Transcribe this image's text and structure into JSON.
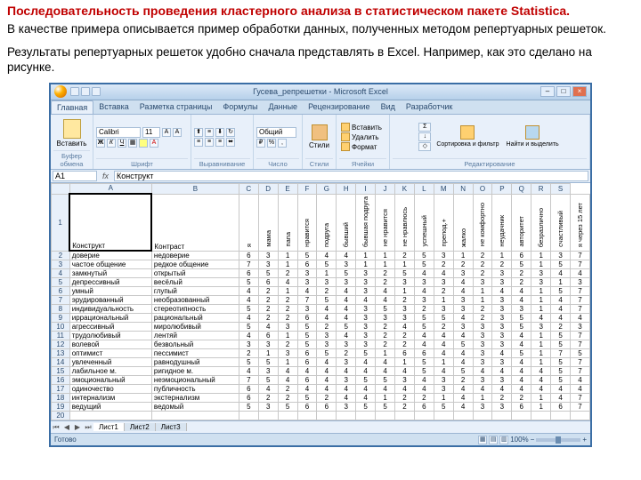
{
  "title": "Последовательность проведения кластерного анализа в статистическом пакете Statistica.",
  "para1": "В качестве примера описывается пример обработки данных, полученных методом репертуарных решеток.",
  "para2": "Результаты репертуарных решеток удобно сначала представлять в Excel. Например, как это сделано на рисунке.",
  "window_title": "Гусева_репрешетки - Microsoft Excel",
  "tabs": [
    "Главная",
    "Вставка",
    "Разметка страницы",
    "Формулы",
    "Данные",
    "Рецензирование",
    "Вид",
    "Разработчик"
  ],
  "active_tab": 0,
  "ribbon": {
    "clipboard": {
      "paste": "Вставить",
      "label": "Буфер обмена"
    },
    "font": {
      "name": "Calibri",
      "size": "11",
      "label": "Шрифт"
    },
    "align": {
      "label": "Выравнивание"
    },
    "number": {
      "format": "Общий",
      "label": "Число"
    },
    "styles": {
      "label": "Стили"
    },
    "cells": {
      "insert": "Вставить",
      "delete": "Удалить",
      "format": "Формат",
      "label": "Ячейки"
    },
    "editing": {
      "sort": "Сортировка и фильтр",
      "find": "Найти и выделить",
      "label": "Редактирование"
    }
  },
  "namebox": "A1",
  "formula": "Конструкт",
  "col_letters": [
    "",
    "A",
    "B",
    "C",
    "D",
    "E",
    "F",
    "G",
    "H",
    "I",
    "J",
    "K",
    "L",
    "M",
    "N",
    "O",
    "P",
    "Q",
    "R",
    "S"
  ],
  "header_row": [
    "Конструкт",
    "Контраст",
    "я",
    "мама",
    "папа",
    "нравится",
    "подруга",
    "бывший",
    "бывшая подруга",
    "не нравится",
    "не нравлюсь",
    "успешный",
    "препод.+",
    "жалко",
    "не комфортно",
    "неудачник",
    "авторитет",
    "безразлично",
    "счастливый",
    "я через 15 лет"
  ],
  "rows": [
    {
      "n": 2,
      "a": "доверие",
      "b": "недоверие",
      "v": [
        6,
        3,
        1,
        5,
        4,
        4,
        1,
        1,
        2,
        5,
        3,
        1,
        2,
        1,
        6,
        1,
        3,
        7
      ]
    },
    {
      "n": 3,
      "a": "частое общение",
      "b": "редкое общение",
      "v": [
        7,
        3,
        1,
        6,
        5,
        3,
        1,
        1,
        1,
        5,
        2,
        2,
        2,
        2,
        5,
        1,
        5,
        7
      ]
    },
    {
      "n": 4,
      "a": "замкнутый",
      "b": "открытый",
      "v": [
        6,
        5,
        2,
        3,
        1,
        5,
        3,
        2,
        5,
        4,
        4,
        3,
        2,
        3,
        2,
        3,
        4,
        4
      ]
    },
    {
      "n": 5,
      "a": "депрессивный",
      "b": "весёлый",
      "v": [
        5,
        6,
        4,
        3,
        3,
        3,
        3,
        2,
        3,
        3,
        3,
        4,
        3,
        3,
        2,
        3,
        1,
        3
      ]
    },
    {
      "n": 6,
      "a": "умный",
      "b": "глупый",
      "v": [
        4,
        2,
        1,
        4,
        2,
        4,
        3,
        4,
        1,
        4,
        2,
        4,
        1,
        4,
        4,
        1,
        5,
        7
      ]
    },
    {
      "n": 7,
      "a": "эрудированный",
      "b": "необразованный",
      "v": [
        4,
        2,
        2,
        7,
        5,
        4,
        4,
        4,
        2,
        3,
        1,
        3,
        1,
        3,
        4,
        1,
        4,
        7
      ]
    },
    {
      "n": 8,
      "a": "индивидуальность",
      "b": "стереотипность",
      "v": [
        5,
        2,
        2,
        3,
        4,
        4,
        3,
        5,
        3,
        2,
        3,
        3,
        2,
        3,
        3,
        1,
        4,
        7
      ]
    },
    {
      "n": 9,
      "a": "иррациональный",
      "b": "рациональный",
      "v": [
        4,
        2,
        2,
        6,
        4,
        4,
        3,
        3,
        3,
        5,
        5,
        4,
        2,
        3,
        5,
        4,
        4,
        4
      ]
    },
    {
      "n": 10,
      "a": "агрессивный",
      "b": "миролюбивый",
      "v": [
        5,
        4,
        3,
        5,
        2,
        5,
        3,
        2,
        4,
        5,
        2,
        3,
        3,
        3,
        5,
        3,
        2,
        3
      ]
    },
    {
      "n": 11,
      "a": "трудолюбивый",
      "b": "лентяй",
      "v": [
        4,
        6,
        1,
        5,
        3,
        4,
        3,
        2,
        2,
        4,
        4,
        4,
        3,
        3,
        4,
        1,
        5,
        7
      ]
    },
    {
      "n": 12,
      "a": "волевой",
      "b": "безвольный",
      "v": [
        3,
        3,
        2,
        5,
        3,
        3,
        3,
        2,
        2,
        4,
        4,
        5,
        3,
        3,
        4,
        1,
        5,
        7
      ]
    },
    {
      "n": 13,
      "a": "оптимист",
      "b": "пессимист",
      "v": [
        2,
        1,
        3,
        6,
        5,
        2,
        5,
        1,
        6,
        6,
        4,
        4,
        3,
        4,
        5,
        1,
        7,
        5
      ]
    },
    {
      "n": 14,
      "a": "увлеченный",
      "b": "равнодушный",
      "v": [
        5,
        5,
        1,
        6,
        4,
        3,
        4,
        4,
        1,
        5,
        1,
        4,
        3,
        3,
        4,
        1,
        5,
        7
      ]
    },
    {
      "n": 15,
      "a": "лабильное м.",
      "b": "ригидное м.",
      "v": [
        4,
        3,
        4,
        4,
        4,
        4,
        4,
        4,
        4,
        5,
        4,
        5,
        4,
        4,
        4,
        4,
        5,
        7
      ]
    },
    {
      "n": 16,
      "a": "эмоциональный",
      "b": "неэмоциональный",
      "v": [
        7,
        5,
        4,
        6,
        4,
        3,
        5,
        5,
        3,
        4,
        3,
        2,
        3,
        3,
        4,
        4,
        5,
        4
      ]
    },
    {
      "n": 17,
      "a": "одиночество",
      "b": "публичность",
      "v": [
        6,
        4,
        2,
        4,
        4,
        4,
        4,
        4,
        4,
        4,
        3,
        4,
        4,
        4,
        4,
        4,
        4,
        4
      ]
    },
    {
      "n": 18,
      "a": "интернализм",
      "b": "экстернализм",
      "v": [
        6,
        2,
        2,
        5,
        2,
        4,
        4,
        1,
        2,
        2,
        1,
        4,
        1,
        2,
        2,
        1,
        4,
        7
      ]
    },
    {
      "n": 19,
      "a": "ведущий",
      "b": "ведомый",
      "v": [
        5,
        3,
        5,
        6,
        6,
        3,
        5,
        5,
        2,
        6,
        5,
        4,
        3,
        3,
        6,
        1,
        6,
        7
      ]
    }
  ],
  "extra_row": 20,
  "sheet_tabs": [
    "Лист1",
    "Лист2",
    "Лист3"
  ],
  "status": "Готово",
  "zoom": "100%"
}
